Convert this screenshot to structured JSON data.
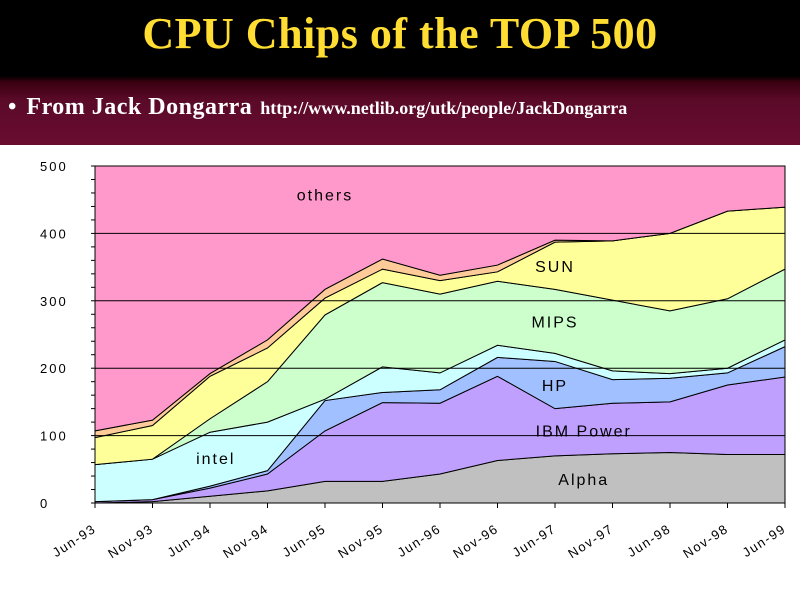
{
  "slide": {
    "title": "CPU Chips of the TOP 500",
    "bullet": "•",
    "bullet_text": "From Jack Dongarra",
    "bullet_url": "http://www.netlib.org/utk/people/JackDongarra"
  },
  "colors": {
    "title": "#ffdd33",
    "header_bg": "#6a0c30"
  },
  "chart_data": {
    "type": "area",
    "stacked": true,
    "categories": [
      "Jun-93",
      "Nov-93",
      "Jun-94",
      "Nov-94",
      "Jun-95",
      "Nov-95",
      "Jun-96",
      "Nov-96",
      "Jun-97",
      "Nov-97",
      "Jun-98",
      "Nov-98",
      "Jun-99"
    ],
    "ylim": [
      0,
      500
    ],
    "yticks": [
      0,
      100,
      200,
      300,
      400,
      500
    ],
    "grid": "horizontal",
    "series": [
      {
        "name": "Alpha",
        "color": "#c0c0c0",
        "values": [
          0,
          2,
          10,
          18,
          32,
          32,
          43,
          63,
          70,
          73,
          75,
          72,
          72
        ]
      },
      {
        "name": "IBM Power",
        "color": "#c0a0ff",
        "values": [
          2,
          3,
          12,
          25,
          75,
          117,
          105,
          125,
          70,
          75,
          75,
          103,
          115
        ]
      },
      {
        "name": "HP",
        "color": "#a0c0ff",
        "values": [
          0,
          0,
          3,
          5,
          45,
          15,
          20,
          28,
          70,
          35,
          35,
          18,
          45
        ]
      },
      {
        "name": "intel",
        "color": "#ccffff",
        "values": [
          55,
          60,
          80,
          72,
          2,
          38,
          25,
          18,
          12,
          13,
          7,
          7,
          10
        ]
      },
      {
        "name": "MIPS",
        "color": "#ccffcc",
        "values": [
          0,
          0,
          20,
          60,
          125,
          125,
          117,
          95,
          95,
          105,
          93,
          103,
          105
        ]
      },
      {
        "name": "SUN",
        "color": "#ffff99",
        "values": [
          40,
          50,
          63,
          50,
          25,
          20,
          20,
          14,
          70,
          88,
          115,
          130,
          92
        ]
      },
      {
        "name": "",
        "color": "#ffcc99",
        "values": [
          10,
          8,
          4,
          12,
          13,
          15,
          8,
          10,
          3,
          0,
          0,
          0,
          0
        ]
      },
      {
        "name": "others",
        "color": "#ff99cc",
        "values": [
          393,
          377,
          308,
          258,
          183,
          138,
          162,
          147,
          110,
          111,
          100,
          67,
          61
        ]
      }
    ],
    "labels": [
      {
        "text": "others",
        "series": "others"
      },
      {
        "text": "SUN",
        "series": "SUN"
      },
      {
        "text": "MIPS",
        "series": "MIPS"
      },
      {
        "text": "HP",
        "series": "HP"
      },
      {
        "text": "intel",
        "series": "intel"
      },
      {
        "text": "IBM Power",
        "series": "IBM Power"
      },
      {
        "text": "Alpha",
        "series": "Alpha"
      }
    ]
  }
}
